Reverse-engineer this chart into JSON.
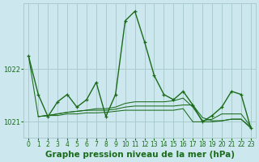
{
  "title": "Graphe pression niveau de la mer (hPa)",
  "bg_color": "#cce8ee",
  "grid_color": "#aacccc",
  "line_color": "#1a6b1a",
  "series0": {
    "x": [
      0,
      1,
      2,
      3,
      4,
      5,
      6,
      7,
      8,
      9,
      10,
      11,
      12,
      13,
      14,
      15,
      16,
      17,
      18,
      19,
      20,
      21,
      22,
      23
    ],
    "y": [
      1022.25,
      1021.52,
      1021.1,
      1021.38,
      1021.52,
      1021.28,
      1021.42,
      1021.75,
      1021.1,
      1021.52,
      1022.92,
      1023.1,
      1022.52,
      1021.88,
      1021.52,
      1021.42,
      1021.58,
      1021.32,
      1021.0,
      1021.12,
      1021.28,
      1021.58,
      1021.52,
      1020.88
    ]
  },
  "series1": {
    "x": [
      0,
      1,
      2,
      3,
      4,
      5,
      6,
      7,
      8,
      9,
      10,
      11,
      12,
      13,
      14,
      15,
      16,
      17,
      18,
      19,
      20,
      21,
      22,
      23
    ],
    "y": [
      1022.25,
      1021.1,
      1021.12,
      1021.12,
      1021.15,
      1021.15,
      1021.17,
      1021.17,
      1021.18,
      1021.2,
      1021.22,
      1021.22,
      1021.22,
      1021.22,
      1021.22,
      1021.22,
      1021.25,
      1021.0,
      1021.0,
      1021.0,
      1021.02,
      1021.05,
      1021.05,
      1020.88
    ]
  },
  "series2": {
    "x": [
      1,
      2,
      3,
      4,
      5,
      6,
      7,
      8,
      9,
      10,
      11,
      12,
      13,
      14,
      15,
      16,
      17,
      18,
      19,
      20,
      21,
      22,
      23
    ],
    "y": [
      1021.1,
      1021.12,
      1021.15,
      1021.18,
      1021.2,
      1021.22,
      1021.22,
      1021.22,
      1021.24,
      1021.28,
      1021.3,
      1021.3,
      1021.3,
      1021.3,
      1021.3,
      1021.32,
      1021.32,
      1021.08,
      1021.02,
      1021.02,
      1021.05,
      1021.05,
      1020.9
    ]
  },
  "series3": {
    "x": [
      1,
      2,
      3,
      4,
      5,
      6,
      7,
      8,
      9,
      10,
      11,
      12,
      13,
      14,
      15,
      16,
      17,
      18,
      19,
      20,
      21,
      22,
      23
    ],
    "y": [
      1021.1,
      1021.12,
      1021.15,
      1021.18,
      1021.2,
      1021.22,
      1021.25,
      1021.25,
      1021.28,
      1021.35,
      1021.38,
      1021.38,
      1021.38,
      1021.38,
      1021.4,
      1021.45,
      1021.28,
      1021.02,
      1021.05,
      1021.15,
      1021.15,
      1021.15,
      1020.91
    ]
  },
  "yticks": [
    1021,
    1022
  ],
  "ylim": [
    1020.7,
    1023.25
  ],
  "xlim": [
    -0.5,
    23.5
  ],
  "title_fontsize": 7.5,
  "tick_fontsize": 6.0
}
